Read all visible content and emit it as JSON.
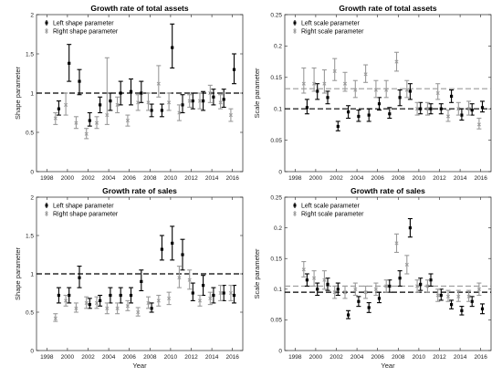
{
  "figure": {
    "series_names": [
      "Left shape parameter",
      "Right shape parameter"
    ]
  },
  "chart_data": [
    {
      "type": "scatter",
      "title": "Growth rate of total assets",
      "xlabel": "",
      "ylabel": "Shape parameter",
      "xlim": [
        1997,
        2017
      ],
      "ylim": [
        0,
        2
      ],
      "xticks": [
        1998,
        2000,
        2002,
        2004,
        2006,
        2008,
        2010,
        2012,
        2014,
        2016
      ],
      "yticks": [
        0,
        0.5,
        1,
        1.5,
        2
      ],
      "ytick_labels": [
        "0",
        "0.5",
        "1",
        "1.5",
        "2"
      ],
      "reference_line": 1,
      "ref_line_color": "#000000",
      "legend_position": "top-left",
      "series": [
        {
          "name": "Left shape parameter",
          "color": "#000000",
          "x": [
            1999,
            2000,
            2001,
            2002,
            2003,
            2004,
            2005,
            2006,
            2007,
            2008,
            2009,
            2010,
            2011,
            2012,
            2013,
            2014,
            2015,
            2016
          ],
          "y": [
            0.8,
            1.38,
            1.15,
            0.65,
            0.85,
            0.9,
            1.0,
            1.02,
            1.0,
            0.78,
            0.78,
            1.58,
            0.85,
            0.9,
            0.9,
            0.95,
            0.92,
            1.3
          ],
          "low": [
            0.72,
            1.15,
            0.98,
            0.58,
            0.75,
            0.78,
            0.85,
            0.85,
            0.88,
            0.7,
            0.7,
            1.32,
            0.75,
            0.8,
            0.78,
            0.85,
            0.82,
            1.12
          ],
          "high": [
            0.9,
            1.62,
            1.3,
            0.75,
            0.95,
            1.0,
            1.15,
            1.18,
            1.15,
            0.86,
            0.86,
            1.88,
            0.98,
            1.0,
            1.02,
            1.05,
            1.05,
            1.5
          ]
        },
        {
          "name": "Right shape parameter",
          "color": "#9a9a9a",
          "x": [
            1999,
            2000,
            2001,
            2002,
            2003,
            2004,
            2005,
            2006,
            2007,
            2008,
            2009,
            2010,
            2011,
            2012,
            2013,
            2014,
            2015,
            2016
          ],
          "y": [
            0.68,
            0.85,
            0.62,
            0.48,
            0.62,
            0.72,
            0.85,
            0.65,
            0.88,
            0.88,
            1.12,
            0.88,
            0.75,
            0.9,
            0.9,
            1.0,
            0.88,
            0.72
          ],
          "low": [
            0.6,
            0.72,
            0.55,
            0.42,
            0.55,
            0.6,
            0.75,
            0.58,
            0.78,
            0.78,
            0.95,
            0.78,
            0.65,
            0.82,
            0.8,
            0.88,
            0.8,
            0.64
          ],
          "high": [
            0.75,
            1.0,
            0.7,
            0.55,
            0.7,
            1.45,
            0.95,
            0.72,
            0.98,
            1.0,
            1.35,
            1.0,
            0.85,
            0.98,
            1.0,
            1.1,
            0.98,
            0.8
          ]
        }
      ]
    },
    {
      "type": "scatter",
      "title": "Growth rate of total assets",
      "xlabel": "",
      "ylabel": "Scale parameter",
      "xlim": [
        1997,
        2017
      ],
      "ylim": [
        0,
        0.25
      ],
      "xticks": [
        1998,
        2000,
        2002,
        2004,
        2006,
        2008,
        2010,
        2012,
        2014,
        2016
      ],
      "yticks": [
        0,
        0.05,
        0.1,
        0.15,
        0.2,
        0.25
      ],
      "ytick_labels": [
        "0",
        "0.05",
        "0.1",
        "0.15",
        "0.2",
        "0.25"
      ],
      "reference_lines": [
        {
          "y": 0.1,
          "color": "#000000"
        },
        {
          "y": 0.132,
          "color": "#9a9a9a"
        }
      ],
      "legend_position": "top-left",
      "series": [
        {
          "name": "Left scale parameter",
          "color": "#000000",
          "x": [
            1999,
            2000,
            2001,
            2002,
            2003,
            2004,
            2005,
            2006,
            2007,
            2008,
            2009,
            2010,
            2011,
            2012,
            2013,
            2014,
            2015,
            2016
          ],
          "y": [
            0.102,
            0.128,
            0.118,
            0.072,
            0.095,
            0.088,
            0.09,
            0.108,
            0.092,
            0.118,
            0.128,
            0.1,
            0.1,
            0.1,
            0.12,
            0.09,
            0.098,
            0.102
          ],
          "low": [
            0.092,
            0.115,
            0.108,
            0.065,
            0.085,
            0.08,
            0.08,
            0.098,
            0.085,
            0.105,
            0.115,
            0.092,
            0.092,
            0.092,
            0.11,
            0.082,
            0.09,
            0.095
          ],
          "high": [
            0.115,
            0.14,
            0.128,
            0.08,
            0.105,
            0.098,
            0.1,
            0.118,
            0.102,
            0.13,
            0.14,
            0.11,
            0.108,
            0.108,
            0.13,
            0.1,
            0.108,
            0.112
          ]
        },
        {
          "name": "Right scale parameter",
          "color": "#9a9a9a",
          "x": [
            1999,
            2000,
            2001,
            2002,
            2003,
            2004,
            2005,
            2006,
            2007,
            2008,
            2009,
            2010,
            2011,
            2012,
            2013,
            2014,
            2015,
            2016
          ],
          "y": [
            0.14,
            0.14,
            0.14,
            0.16,
            0.14,
            0.13,
            0.155,
            0.13,
            0.13,
            0.175,
            0.13,
            0.1,
            0.1,
            0.125,
            0.088,
            0.1,
            0.1,
            0.075
          ],
          "low": [
            0.125,
            0.128,
            0.125,
            0.145,
            0.128,
            0.118,
            0.142,
            0.118,
            0.118,
            0.16,
            0.118,
            0.09,
            0.09,
            0.115,
            0.08,
            0.09,
            0.09,
            0.068
          ],
          "high": [
            0.165,
            0.165,
            0.162,
            0.18,
            0.158,
            0.145,
            0.17,
            0.145,
            0.145,
            0.19,
            0.145,
            0.11,
            0.11,
            0.14,
            0.098,
            0.11,
            0.112,
            0.085
          ]
        }
      ]
    },
    {
      "type": "scatter",
      "title": "Growth rate of sales",
      "xlabel": "Year",
      "ylabel": "Shape parameter",
      "xlim": [
        1997,
        2017
      ],
      "ylim": [
        0,
        2
      ],
      "xticks": [
        1998,
        2000,
        2002,
        2004,
        2006,
        2008,
        2010,
        2012,
        2014,
        2016
      ],
      "yticks": [
        0,
        0.5,
        1,
        1.5,
        2
      ],
      "ytick_labels": [
        "0",
        "0.5",
        "1",
        "1.5",
        "2"
      ],
      "reference_line": 1,
      "ref_line_color": "#000000",
      "legend_position": "top-left",
      "series": [
        {
          "name": "Left shape parameter",
          "color": "#000000",
          "x": [
            1999,
            2000,
            2001,
            2002,
            2003,
            2004,
            2005,
            2006,
            2007,
            2008,
            2009,
            2010,
            2011,
            2012,
            2013,
            2014,
            2015,
            2016
          ],
          "y": [
            0.72,
            0.72,
            0.95,
            0.6,
            0.65,
            0.72,
            0.72,
            0.72,
            0.9,
            0.55,
            1.32,
            1.4,
            1.25,
            0.75,
            0.85,
            0.72,
            0.75,
            0.72
          ],
          "low": [
            0.62,
            0.62,
            0.82,
            0.55,
            0.58,
            0.62,
            0.62,
            0.62,
            0.78,
            0.5,
            1.18,
            1.18,
            1.05,
            0.65,
            0.72,
            0.62,
            0.65,
            0.62
          ],
          "high": [
            0.82,
            0.82,
            1.1,
            0.68,
            0.72,
            0.82,
            0.82,
            0.82,
            1.05,
            0.62,
            1.5,
            1.62,
            1.45,
            0.88,
            0.98,
            0.82,
            0.85,
            0.85
          ]
        },
        {
          "name": "Right shape parameter",
          "color": "#9a9a9a",
          "x": [
            1999,
            2000,
            2001,
            2002,
            2003,
            2004,
            2005,
            2006,
            2007,
            2008,
            2009,
            2010,
            2011,
            2012,
            2013,
            2014,
            2015,
            2016
          ],
          "y": [
            0.42,
            0.65,
            0.55,
            0.62,
            0.62,
            0.55,
            0.55,
            0.58,
            0.5,
            0.62,
            0.65,
            0.68,
            0.95,
            0.92,
            0.65,
            0.68,
            0.75,
            0.75
          ],
          "low": [
            0.38,
            0.58,
            0.5,
            0.55,
            0.55,
            0.48,
            0.48,
            0.52,
            0.45,
            0.55,
            0.58,
            0.6,
            0.82,
            0.8,
            0.58,
            0.6,
            0.65,
            0.65
          ],
          "high": [
            0.48,
            0.72,
            0.62,
            0.7,
            0.7,
            0.62,
            0.62,
            0.65,
            0.56,
            0.7,
            0.72,
            0.76,
            1.1,
            1.05,
            0.72,
            0.76,
            0.85,
            0.85
          ]
        }
      ]
    },
    {
      "type": "scatter",
      "title": "Growth rate of sales",
      "xlabel": "Year",
      "ylabel": "Scale parameter",
      "xlim": [
        1997,
        2017
      ],
      "ylim": [
        0,
        0.25
      ],
      "xticks": [
        1998,
        2000,
        2002,
        2004,
        2006,
        2008,
        2010,
        2012,
        2014,
        2016
      ],
      "yticks": [
        0,
        0.05,
        0.1,
        0.15,
        0.2,
        0.25
      ],
      "ytick_labels": [
        "0",
        "0.05",
        "0.1",
        "0.15",
        "0.2",
        "0.25"
      ],
      "reference_lines": [
        {
          "y": 0.095,
          "color": "#000000"
        },
        {
          "y": 0.105,
          "color": "#9a9a9a"
        }
      ],
      "legend_position": "top-left",
      "series": [
        {
          "name": "Left scale parameter",
          "color": "#000000",
          "x": [
            1999,
            2000,
            2001,
            2002,
            2003,
            2004,
            2005,
            2006,
            2007,
            2008,
            2009,
            2010,
            2011,
            2012,
            2013,
            2014,
            2015,
            2016
          ],
          "y": [
            0.115,
            0.1,
            0.108,
            0.1,
            0.058,
            0.08,
            0.07,
            0.085,
            0.105,
            0.118,
            0.2,
            0.108,
            0.115,
            0.09,
            0.075,
            0.065,
            0.08,
            0.068
          ],
          "low": [
            0.105,
            0.09,
            0.098,
            0.09,
            0.052,
            0.072,
            0.062,
            0.078,
            0.095,
            0.105,
            0.185,
            0.098,
            0.105,
            0.082,
            0.068,
            0.058,
            0.072,
            0.06
          ],
          "high": [
            0.125,
            0.11,
            0.118,
            0.11,
            0.065,
            0.088,
            0.078,
            0.095,
            0.115,
            0.13,
            0.215,
            0.118,
            0.125,
            0.1,
            0.082,
            0.072,
            0.088,
            0.076
          ]
        },
        {
          "name": "Right scale parameter",
          "color": "#9a9a9a",
          "x": [
            1999,
            2000,
            2001,
            2002,
            2003,
            2004,
            2005,
            2006,
            2007,
            2008,
            2009,
            2010,
            2011,
            2012,
            2013,
            2014,
            2015,
            2016
          ],
          "y": [
            0.132,
            0.118,
            0.115,
            0.095,
            0.095,
            0.1,
            0.095,
            0.1,
            0.105,
            0.175,
            0.14,
            0.105,
            0.105,
            0.09,
            0.088,
            0.088,
            0.088,
            0.1
          ],
          "low": [
            0.12,
            0.105,
            0.1,
            0.085,
            0.085,
            0.09,
            0.085,
            0.09,
            0.095,
            0.16,
            0.125,
            0.095,
            0.095,
            0.08,
            0.08,
            0.08,
            0.08,
            0.09
          ],
          "high": [
            0.145,
            0.13,
            0.13,
            0.105,
            0.105,
            0.11,
            0.105,
            0.11,
            0.115,
            0.19,
            0.155,
            0.115,
            0.115,
            0.1,
            0.098,
            0.098,
            0.098,
            0.11
          ]
        }
      ]
    }
  ]
}
